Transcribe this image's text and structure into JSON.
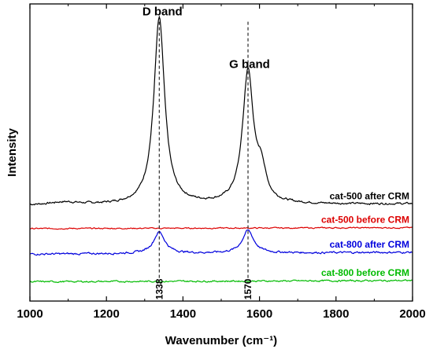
{
  "chart_data": {
    "type": "line",
    "xlabel": "Wavenumber (cm⁻¹)",
    "ylabel": "Intensity",
    "xlim": [
      1000,
      2000
    ],
    "x_ticks": [
      "1000",
      "1200",
      "1400",
      "1600",
      "1800",
      "2000"
    ],
    "ylim": [
      0,
      100
    ],
    "y_tick_labels_shown": false,
    "grid": false,
    "series": [
      {
        "name": "cat-500 after CRM",
        "color": "#000000",
        "baseline": 32.2,
        "slope": 0.5,
        "noise": 0.25,
        "peaks": [
          {
            "center": 1338,
            "height": 62.7,
            "width": 34
          },
          {
            "center": 1570,
            "height": 44.3,
            "width": 34
          },
          {
            "center": 1605,
            "height": 9.5,
            "width": 28
          },
          {
            "center": 1090,
            "height": 0.9,
            "width": 90
          }
        ]
      },
      {
        "name": "cat-500 before CRM",
        "color": "#dd0000",
        "baseline": 24.4,
        "slope": 0.3,
        "noise": 0.15,
        "peaks": []
      },
      {
        "name": "cat-800 after CRM",
        "color": "#0000dd",
        "baseline": 15.8,
        "slope": 0.6,
        "noise": 0.25,
        "peaks": [
          {
            "center": 1338,
            "height": 7.2,
            "width": 36
          },
          {
            "center": 1570,
            "height": 7.6,
            "width": 36
          }
        ]
      },
      {
        "name": "cat-800 before CRM",
        "color": "#00bb00",
        "baseline": 6.5,
        "slope": 0.4,
        "noise": 0.2,
        "peaks": []
      }
    ],
    "annotations": {
      "d_band": {
        "label": "D band",
        "x": 1338
      },
      "g_band": {
        "label": "G band",
        "x": 1570
      },
      "peak_positions": [
        {
          "x": 1338,
          "label": "1338"
        },
        {
          "x": 1570,
          "label": "1570"
        }
      ]
    }
  }
}
